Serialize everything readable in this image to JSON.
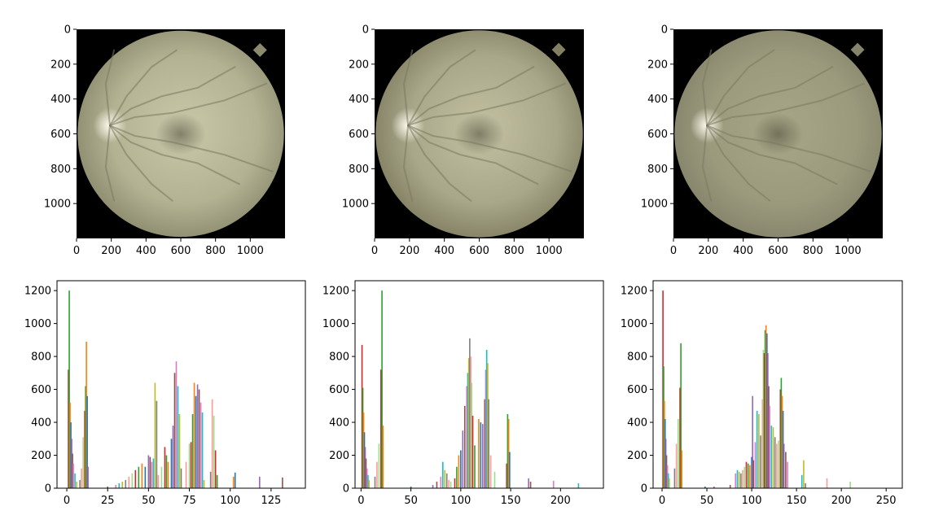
{
  "figure": {
    "background": "#ffffff",
    "fundus_colors": {
      "center": "#c9c8a9",
      "mid": "#b3b293",
      "edge": "#8d8b6e",
      "vessel": "#7a795f",
      "disc": "#f1efdc",
      "macula": "#6f6d56",
      "mask": "#000000"
    },
    "series_palette": [
      "#d62728",
      "#2ca02c",
      "#ff7f0e",
      "#1f77b4",
      "#9467bd",
      "#8c564b",
      "#e377c2",
      "#17becf",
      "#bcbd22",
      "#7f7f7f",
      "#ff9896",
      "#98df8a"
    ]
  },
  "chart_data": [
    {
      "type": "image",
      "panel": "top-left",
      "x_ticks": [
        0,
        200,
        400,
        600,
        800,
        1000
      ],
      "y_ticks": [
        0,
        200,
        400,
        600,
        800,
        1000
      ],
      "xlim": [
        0,
        1200
      ],
      "ylim": [
        1200,
        0
      ],
      "tone": "bright"
    },
    {
      "type": "image",
      "panel": "top-middle",
      "x_ticks": [
        0,
        200,
        400,
        600,
        800,
        1000
      ],
      "y_ticks": [
        0,
        200,
        400,
        600,
        800,
        1000
      ],
      "xlim": [
        0,
        1200
      ],
      "ylim": [
        1200,
        0
      ],
      "tone": "contrast"
    },
    {
      "type": "image",
      "panel": "top-right",
      "x_ticks": [
        0,
        200,
        400,
        600,
        800,
        1000
      ],
      "y_ticks": [
        0,
        200,
        400,
        600,
        800,
        1000
      ],
      "xlim": [
        0,
        1200
      ],
      "ylim": [
        1200,
        0
      ],
      "tone": "flat"
    },
    {
      "type": "bar",
      "panel": "bottom-left",
      "x_ticks": [
        0,
        25,
        50,
        75,
        100,
        125
      ],
      "y_ticks": [
        0,
        200,
        400,
        600,
        800,
        1000,
        1200
      ],
      "xlim": [
        -6,
        146
      ],
      "ylim": [
        0,
        1260
      ],
      "bars": [
        {
          "x": 1,
          "y": 720
        },
        {
          "x": 1.5,
          "y": 1200
        },
        {
          "x": 2,
          "y": 520
        },
        {
          "x": 2.5,
          "y": 400
        },
        {
          "x": 3,
          "y": 300
        },
        {
          "x": 3.5,
          "y": 210
        },
        {
          "x": 4,
          "y": 150
        },
        {
          "x": 5,
          "y": 90
        },
        {
          "x": 6,
          "y": 40
        },
        {
          "x": 8,
          "y": 50
        },
        {
          "x": 9,
          "y": 120
        },
        {
          "x": 10,
          "y": 310
        },
        {
          "x": 11,
          "y": 470
        },
        {
          "x": 11.5,
          "y": 620
        },
        {
          "x": 12,
          "y": 890
        },
        {
          "x": 12.5,
          "y": 560
        },
        {
          "x": 13,
          "y": 130
        },
        {
          "x": 25,
          "y": 10
        },
        {
          "x": 30,
          "y": 20
        },
        {
          "x": 32,
          "y": 30
        },
        {
          "x": 34,
          "y": 40
        },
        {
          "x": 36,
          "y": 50
        },
        {
          "x": 38,
          "y": 70
        },
        {
          "x": 40,
          "y": 90
        },
        {
          "x": 42,
          "y": 110
        },
        {
          "x": 44,
          "y": 130
        },
        {
          "x": 46,
          "y": 150
        },
        {
          "x": 48,
          "y": 130
        },
        {
          "x": 50,
          "y": 200
        },
        {
          "x": 51,
          "y": 190
        },
        {
          "x": 52,
          "y": 160
        },
        {
          "x": 53,
          "y": 180
        },
        {
          "x": 54,
          "y": 640
        },
        {
          "x": 55,
          "y": 530
        },
        {
          "x": 56,
          "y": 80
        },
        {
          "x": 58,
          "y": 130
        },
        {
          "x": 60,
          "y": 250
        },
        {
          "x": 61,
          "y": 200
        },
        {
          "x": 62,
          "y": 160
        },
        {
          "x": 64,
          "y": 300
        },
        {
          "x": 65,
          "y": 380
        },
        {
          "x": 66,
          "y": 700
        },
        {
          "x": 67,
          "y": 770
        },
        {
          "x": 68,
          "y": 620
        },
        {
          "x": 69,
          "y": 450
        },
        {
          "x": 70,
          "y": 120
        },
        {
          "x": 73,
          "y": 160
        },
        {
          "x": 75,
          "y": 270
        },
        {
          "x": 76,
          "y": 280
        },
        {
          "x": 77,
          "y": 450
        },
        {
          "x": 78,
          "y": 640
        },
        {
          "x": 79,
          "y": 560
        },
        {
          "x": 80,
          "y": 630
        },
        {
          "x": 81,
          "y": 600
        },
        {
          "x": 82,
          "y": 520
        },
        {
          "x": 83,
          "y": 460
        },
        {
          "x": 84,
          "y": 50
        },
        {
          "x": 88,
          "y": 100
        },
        {
          "x": 89,
          "y": 540
        },
        {
          "x": 90,
          "y": 440
        },
        {
          "x": 91,
          "y": 230
        },
        {
          "x": 92,
          "y": 80
        },
        {
          "x": 102,
          "y": 70
        },
        {
          "x": 103,
          "y": 95
        },
        {
          "x": 118,
          "y": 70
        },
        {
          "x": 132,
          "y": 65
        }
      ]
    },
    {
      "type": "bar",
      "panel": "bottom-middle",
      "x_ticks": [
        0,
        50,
        100,
        150,
        200
      ],
      "y_ticks": [
        0,
        200,
        400,
        600,
        800,
        1000,
        1200
      ],
      "xlim": [
        -6,
        243
      ],
      "ylim": [
        0,
        1260
      ],
      "bars": [
        {
          "x": 1,
          "y": 870
        },
        {
          "x": 1.8,
          "y": 610
        },
        {
          "x": 2.6,
          "y": 460
        },
        {
          "x": 3.4,
          "y": 340
        },
        {
          "x": 4.2,
          "y": 250
        },
        {
          "x": 5,
          "y": 180
        },
        {
          "x": 6,
          "y": 120
        },
        {
          "x": 7,
          "y": 80
        },
        {
          "x": 8,
          "y": 50
        },
        {
          "x": 14,
          "y": 70
        },
        {
          "x": 16,
          "y": 160
        },
        {
          "x": 18,
          "y": 270
        },
        {
          "x": 20,
          "y": 720
        },
        {
          "x": 21,
          "y": 1200
        },
        {
          "x": 22,
          "y": 380
        },
        {
          "x": 50,
          "y": 10
        },
        {
          "x": 72,
          "y": 20
        },
        {
          "x": 76,
          "y": 40
        },
        {
          "x": 80,
          "y": 70
        },
        {
          "x": 82,
          "y": 160
        },
        {
          "x": 84,
          "y": 110
        },
        {
          "x": 86,
          "y": 90
        },
        {
          "x": 88,
          "y": 50
        },
        {
          "x": 90,
          "y": 40
        },
        {
          "x": 94,
          "y": 60
        },
        {
          "x": 96,
          "y": 130
        },
        {
          "x": 98,
          "y": 200
        },
        {
          "x": 100,
          "y": 230
        },
        {
          "x": 102,
          "y": 350
        },
        {
          "x": 104,
          "y": 500
        },
        {
          "x": 106,
          "y": 620
        },
        {
          "x": 107,
          "y": 700
        },
        {
          "x": 108,
          "y": 790
        },
        {
          "x": 109,
          "y": 910
        },
        {
          "x": 110,
          "y": 800
        },
        {
          "x": 111,
          "y": 640
        },
        {
          "x": 112,
          "y": 440
        },
        {
          "x": 114,
          "y": 260
        },
        {
          "x": 118,
          "y": 420
        },
        {
          "x": 120,
          "y": 400
        },
        {
          "x": 122,
          "y": 390
        },
        {
          "x": 124,
          "y": 540
        },
        {
          "x": 125,
          "y": 720
        },
        {
          "x": 126,
          "y": 840
        },
        {
          "x": 127,
          "y": 760
        },
        {
          "x": 128,
          "y": 540
        },
        {
          "x": 130,
          "y": 200
        },
        {
          "x": 134,
          "y": 100
        },
        {
          "x": 146,
          "y": 150
        },
        {
          "x": 147,
          "y": 450
        },
        {
          "x": 148,
          "y": 420
        },
        {
          "x": 149,
          "y": 220
        },
        {
          "x": 168,
          "y": 60
        },
        {
          "x": 170,
          "y": 40
        },
        {
          "x": 193,
          "y": 45
        },
        {
          "x": 218,
          "y": 30
        }
      ]
    },
    {
      "type": "bar",
      "panel": "bottom-right",
      "x_ticks": [
        0,
        50,
        100,
        150,
        200,
        250
      ],
      "y_ticks": [
        0,
        200,
        400,
        600,
        800,
        1000,
        1200
      ],
      "xlim": [
        -10,
        268
      ],
      "ylim": [
        0,
        1260
      ],
      "bars": [
        {
          "x": 1,
          "y": 1200
        },
        {
          "x": 1.8,
          "y": 740
        },
        {
          "x": 2.6,
          "y": 530
        },
        {
          "x": 3.4,
          "y": 420
        },
        {
          "x": 4.2,
          "y": 300
        },
        {
          "x": 5,
          "y": 200
        },
        {
          "x": 6,
          "y": 140
        },
        {
          "x": 7,
          "y": 90
        },
        {
          "x": 8,
          "y": 60
        },
        {
          "x": 14,
          "y": 120
        },
        {
          "x": 16,
          "y": 270
        },
        {
          "x": 18,
          "y": 420
        },
        {
          "x": 20,
          "y": 610
        },
        {
          "x": 21,
          "y": 880
        },
        {
          "x": 22,
          "y": 230
        },
        {
          "x": 48,
          "y": 10
        },
        {
          "x": 58,
          "y": 10
        },
        {
          "x": 76,
          "y": 20
        },
        {
          "x": 82,
          "y": 90
        },
        {
          "x": 84,
          "y": 110
        },
        {
          "x": 86,
          "y": 100
        },
        {
          "x": 88,
          "y": 90
        },
        {
          "x": 90,
          "y": 110
        },
        {
          "x": 92,
          "y": 130
        },
        {
          "x": 94,
          "y": 160
        },
        {
          "x": 96,
          "y": 150
        },
        {
          "x": 98,
          "y": 140
        },
        {
          "x": 100,
          "y": 190
        },
        {
          "x": 101,
          "y": 560
        },
        {
          "x": 102,
          "y": 170
        },
        {
          "x": 104,
          "y": 280
        },
        {
          "x": 106,
          "y": 470
        },
        {
          "x": 108,
          "y": 450
        },
        {
          "x": 110,
          "y": 320
        },
        {
          "x": 112,
          "y": 540
        },
        {
          "x": 113,
          "y": 840
        },
        {
          "x": 114,
          "y": 820
        },
        {
          "x": 115,
          "y": 960
        },
        {
          "x": 116,
          "y": 990
        },
        {
          "x": 117,
          "y": 940
        },
        {
          "x": 118,
          "y": 820
        },
        {
          "x": 119,
          "y": 620
        },
        {
          "x": 120,
          "y": 500
        },
        {
          "x": 122,
          "y": 380
        },
        {
          "x": 124,
          "y": 370
        },
        {
          "x": 126,
          "y": 310
        },
        {
          "x": 128,
          "y": 270
        },
        {
          "x": 130,
          "y": 290
        },
        {
          "x": 132,
          "y": 600
        },
        {
          "x": 133,
          "y": 670
        },
        {
          "x": 134,
          "y": 560
        },
        {
          "x": 135,
          "y": 470
        },
        {
          "x": 136,
          "y": 270
        },
        {
          "x": 138,
          "y": 220
        },
        {
          "x": 140,
          "y": 160
        },
        {
          "x": 156,
          "y": 80
        },
        {
          "x": 158,
          "y": 170
        },
        {
          "x": 160,
          "y": 30
        },
        {
          "x": 184,
          "y": 60
        },
        {
          "x": 210,
          "y": 40
        }
      ]
    }
  ]
}
